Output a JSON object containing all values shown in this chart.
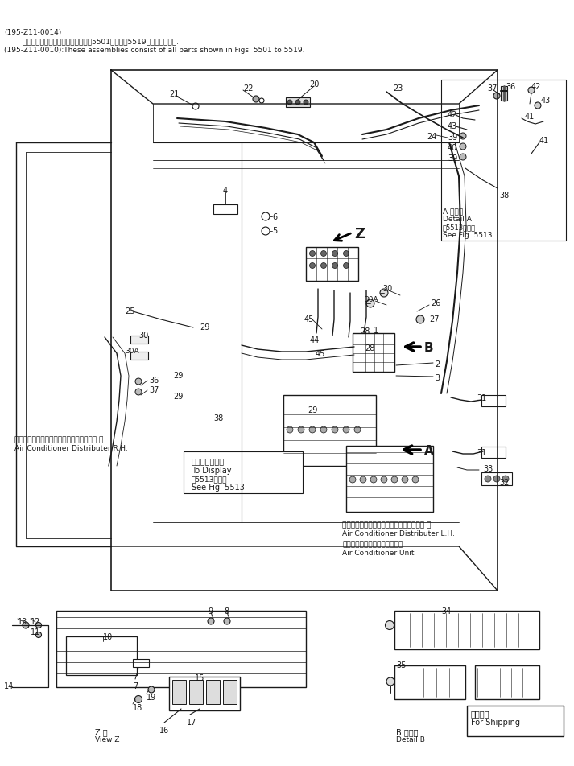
{
  "background_color": "#ffffff",
  "line_color": "#1a1a1a",
  "header_line1": "(195-Z11-0014)",
  "header_line2": "        これらのアセンブリの構成部品は第5501図から第5519図まで含みます.",
  "header_line3": "(195-Z11-0010):These assemblies consist of all parts shown in Figs. 5501 to 5519.",
  "detail_a_en": "Detail A",
  "detail_a_ref_jp": "第5513図参照",
  "detail_a_ref_en": "See Fig. 5513",
  "detail_a_label_jp": "A 詳細図",
  "label_ac_dist_rh_jp": "エアーコンディショナディストリビュータ 右",
  "label_ac_dist_rh_en": "Air Conditioner Distributer R.H.",
  "label_display_jp": "ディスプレイへ",
  "label_display_en": "To Display",
  "label_display_ref_jp": "第5513図参照",
  "label_display_ref_en": "See Fig. 5513",
  "label_ac_dist_lh_jp": "エアーコンディショナディストリビュータ 左",
  "label_ac_dist_lh_en": "Air Conditioner Distributer L.H.",
  "label_ac_unit_jp": "エアーコンディショナユニット",
  "label_ac_unit_en": "Air Conditioner Unit",
  "label_z_view_jp": "Z 極",
  "label_z_view_en": "View Z",
  "label_detail_b_jp": "B 詳細図",
  "label_detail_b_en": "Detail B",
  "label_for_shipping_jp": "運輸部品",
  "label_for_shipping_en": "For Shipping"
}
